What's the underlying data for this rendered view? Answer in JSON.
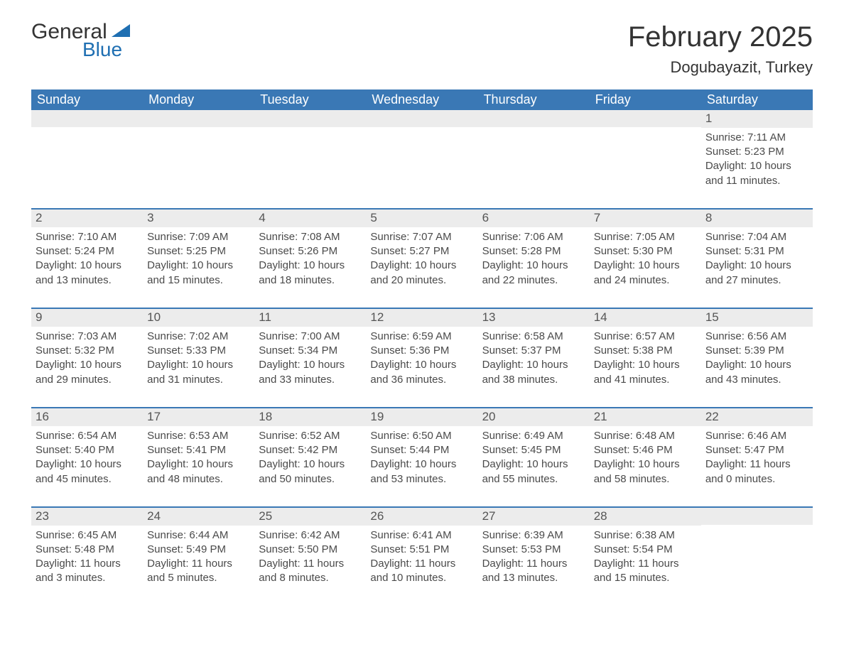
{
  "colors": {
    "header_bg": "#3a78b5",
    "accent": "#1f6fb2",
    "cell_header_bg": "#ececec",
    "text": "#333333",
    "body_bg": "#ffffff"
  },
  "logo": {
    "word1": "General",
    "word2": "Blue"
  },
  "title": "February 2025",
  "location": "Dogubayazit, Turkey",
  "day_names": [
    "Sunday",
    "Monday",
    "Tuesday",
    "Wednesday",
    "Thursday",
    "Friday",
    "Saturday"
  ],
  "first_weekday_index": 6,
  "days": [
    {
      "n": 1,
      "sunrise": "7:11 AM",
      "sunset": "5:23 PM",
      "daylight": "10 hours and 11 minutes."
    },
    {
      "n": 2,
      "sunrise": "7:10 AM",
      "sunset": "5:24 PM",
      "daylight": "10 hours and 13 minutes."
    },
    {
      "n": 3,
      "sunrise": "7:09 AM",
      "sunset": "5:25 PM",
      "daylight": "10 hours and 15 minutes."
    },
    {
      "n": 4,
      "sunrise": "7:08 AM",
      "sunset": "5:26 PM",
      "daylight": "10 hours and 18 minutes."
    },
    {
      "n": 5,
      "sunrise": "7:07 AM",
      "sunset": "5:27 PM",
      "daylight": "10 hours and 20 minutes."
    },
    {
      "n": 6,
      "sunrise": "7:06 AM",
      "sunset": "5:28 PM",
      "daylight": "10 hours and 22 minutes."
    },
    {
      "n": 7,
      "sunrise": "7:05 AM",
      "sunset": "5:30 PM",
      "daylight": "10 hours and 24 minutes."
    },
    {
      "n": 8,
      "sunrise": "7:04 AM",
      "sunset": "5:31 PM",
      "daylight": "10 hours and 27 minutes."
    },
    {
      "n": 9,
      "sunrise": "7:03 AM",
      "sunset": "5:32 PM",
      "daylight": "10 hours and 29 minutes."
    },
    {
      "n": 10,
      "sunrise": "7:02 AM",
      "sunset": "5:33 PM",
      "daylight": "10 hours and 31 minutes."
    },
    {
      "n": 11,
      "sunrise": "7:00 AM",
      "sunset": "5:34 PM",
      "daylight": "10 hours and 33 minutes."
    },
    {
      "n": 12,
      "sunrise": "6:59 AM",
      "sunset": "5:36 PM",
      "daylight": "10 hours and 36 minutes."
    },
    {
      "n": 13,
      "sunrise": "6:58 AM",
      "sunset": "5:37 PM",
      "daylight": "10 hours and 38 minutes."
    },
    {
      "n": 14,
      "sunrise": "6:57 AM",
      "sunset": "5:38 PM",
      "daylight": "10 hours and 41 minutes."
    },
    {
      "n": 15,
      "sunrise": "6:56 AM",
      "sunset": "5:39 PM",
      "daylight": "10 hours and 43 minutes."
    },
    {
      "n": 16,
      "sunrise": "6:54 AM",
      "sunset": "5:40 PM",
      "daylight": "10 hours and 45 minutes."
    },
    {
      "n": 17,
      "sunrise": "6:53 AM",
      "sunset": "5:41 PM",
      "daylight": "10 hours and 48 minutes."
    },
    {
      "n": 18,
      "sunrise": "6:52 AM",
      "sunset": "5:42 PM",
      "daylight": "10 hours and 50 minutes."
    },
    {
      "n": 19,
      "sunrise": "6:50 AM",
      "sunset": "5:44 PM",
      "daylight": "10 hours and 53 minutes."
    },
    {
      "n": 20,
      "sunrise": "6:49 AM",
      "sunset": "5:45 PM",
      "daylight": "10 hours and 55 minutes."
    },
    {
      "n": 21,
      "sunrise": "6:48 AM",
      "sunset": "5:46 PM",
      "daylight": "10 hours and 58 minutes."
    },
    {
      "n": 22,
      "sunrise": "6:46 AM",
      "sunset": "5:47 PM",
      "daylight": "11 hours and 0 minutes."
    },
    {
      "n": 23,
      "sunrise": "6:45 AM",
      "sunset": "5:48 PM",
      "daylight": "11 hours and 3 minutes."
    },
    {
      "n": 24,
      "sunrise": "6:44 AM",
      "sunset": "5:49 PM",
      "daylight": "11 hours and 5 minutes."
    },
    {
      "n": 25,
      "sunrise": "6:42 AM",
      "sunset": "5:50 PM",
      "daylight": "11 hours and 8 minutes."
    },
    {
      "n": 26,
      "sunrise": "6:41 AM",
      "sunset": "5:51 PM",
      "daylight": "11 hours and 10 minutes."
    },
    {
      "n": 27,
      "sunrise": "6:39 AM",
      "sunset": "5:53 PM",
      "daylight": "11 hours and 13 minutes."
    },
    {
      "n": 28,
      "sunrise": "6:38 AM",
      "sunset": "5:54 PM",
      "daylight": "11 hours and 15 minutes."
    }
  ],
  "labels": {
    "sunrise": "Sunrise:",
    "sunset": "Sunset:",
    "daylight": "Daylight:"
  }
}
